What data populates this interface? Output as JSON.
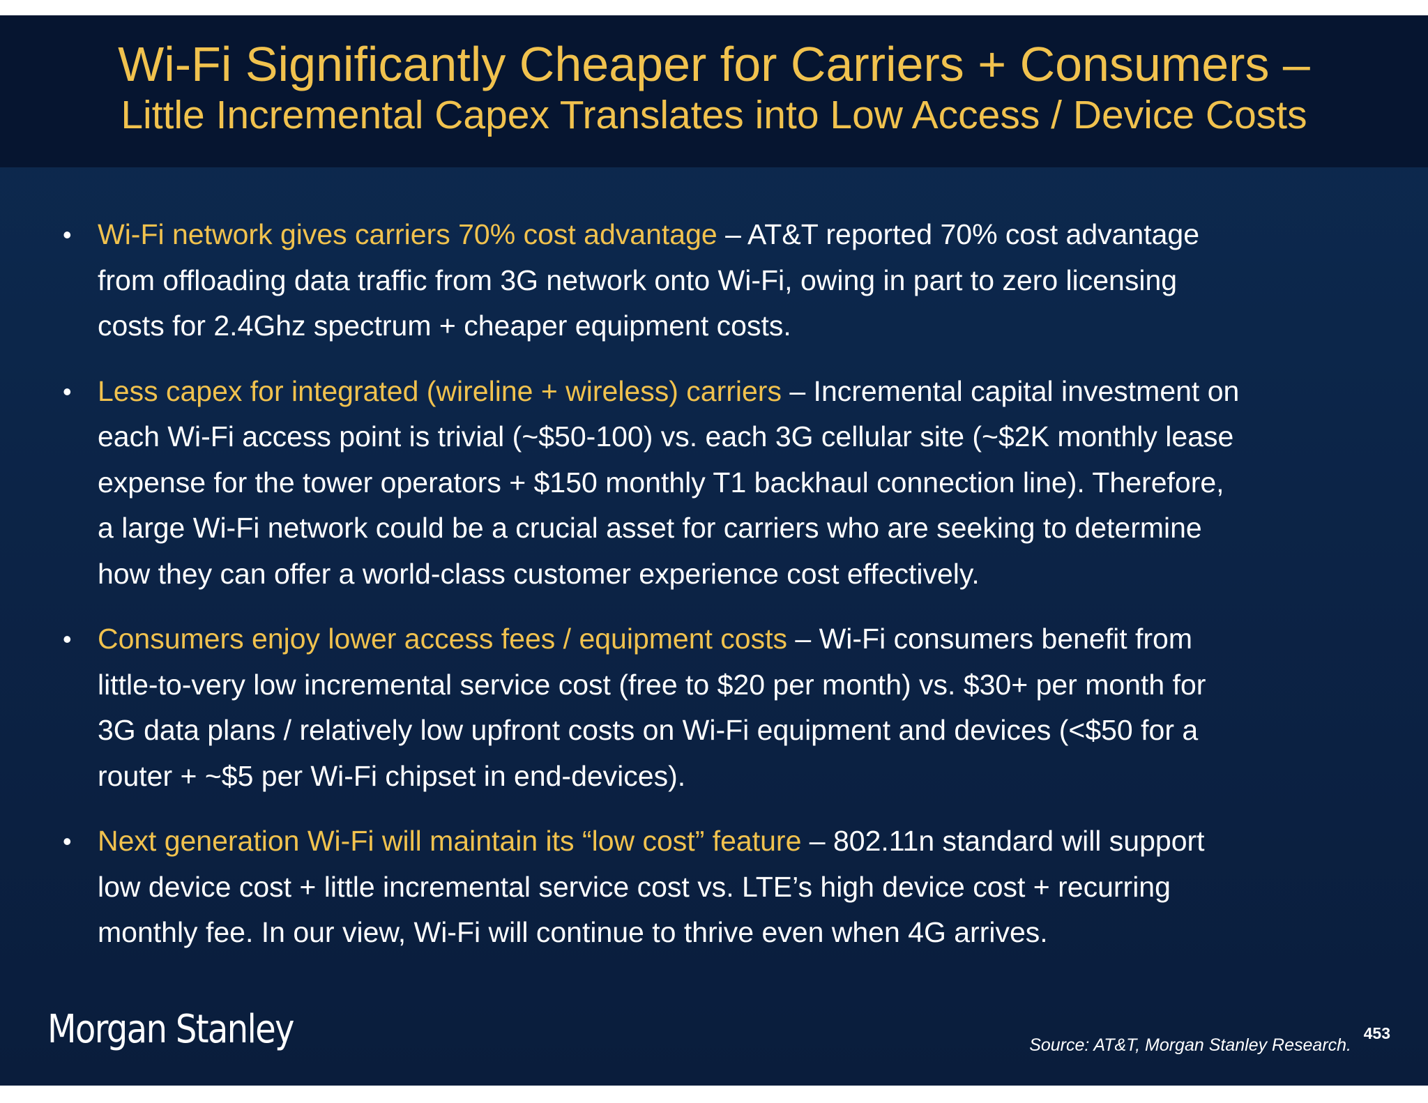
{
  "header": {
    "title": "Wi-Fi Significantly Cheaper for Carriers + Consumers –",
    "subtitle": "Little Incremental Capex Translates into Low Access / Device Costs"
  },
  "bullets": [
    {
      "lead": "Wi-Fi network gives carriers 70% cost advantage",
      "lines": [
        " – AT&T reported 70% cost advantage",
        "from offloading data traffic from 3G network onto Wi-Fi, owing in part to zero licensing",
        "costs for 2.4Ghz spectrum + cheaper equipment costs."
      ]
    },
    {
      "lead": "Less capex for integrated (wireline + wireless) carriers",
      "lines": [
        " – Incremental capital investment on",
        "each Wi-Fi access point is trivial (~$50-100) vs. each 3G cellular site (~$2K monthly lease",
        "expense for the tower operators + $150 monthly T1 backhaul connection line). Therefore,",
        "a large Wi-Fi network could be a crucial asset for carriers who are seeking to determine",
        "how they can offer a world-class customer experience cost effectively."
      ]
    },
    {
      "lead": "Consumers enjoy lower access fees / equipment costs",
      "lines": [
        " – Wi-Fi consumers benefit from",
        "little-to-very low incremental service cost (free to $20 per month) vs. $30+ per month for",
        "3G data plans / relatively low upfront costs on Wi-Fi equipment and devices (<$50 for a",
        "router + ~$5 per Wi-Fi chipset in end-devices)."
      ]
    },
    {
      "lead": "Next generation Wi-Fi will maintain its “low cost” feature",
      "lines": [
        " – 802.11n standard will support",
        "low device cost + little incremental service cost vs. LTE’s high device cost + recurring",
        "monthly fee. In our view, Wi-Fi will continue to thrive even when 4G arrives."
      ]
    }
  ],
  "footer": {
    "logo_text": "Morgan Stanley",
    "source": "Source: AT&T, Morgan Stanley Research.",
    "page_number": "453"
  },
  "colors": {
    "background": "#0c2447",
    "header_background": "#061530",
    "accent_gold": "#f1c24e",
    "body_text": "#ffffff"
  }
}
